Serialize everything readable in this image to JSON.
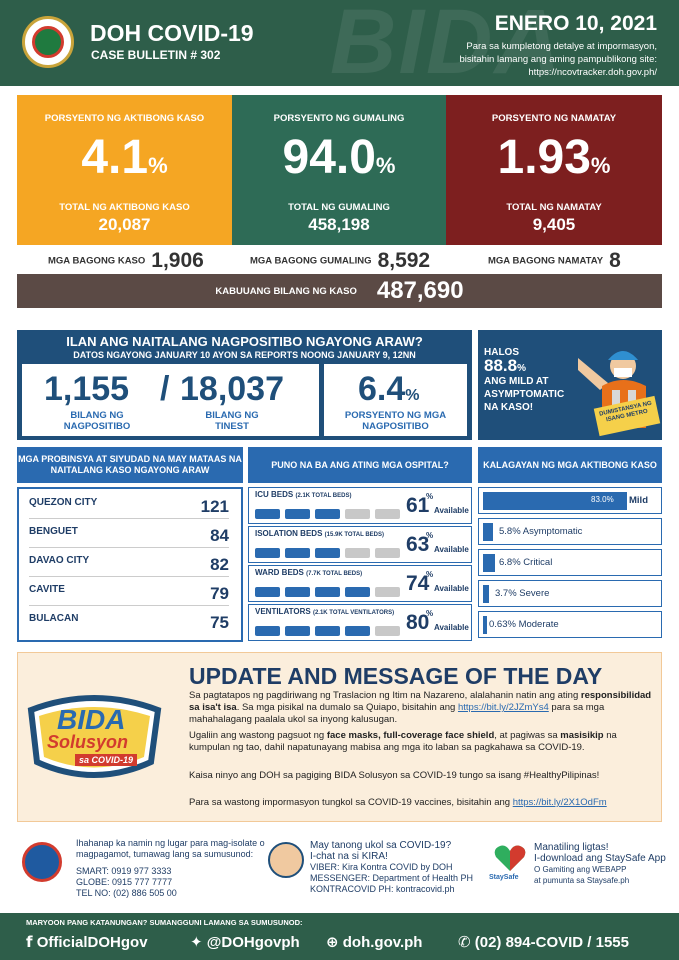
{
  "header": {
    "title": "DOH COVID-19",
    "subtitle": "CASE BULLETIN # 302",
    "date": "ENERO 10, 2021",
    "note1": "Para sa kumpletong detalye at impormasyon,",
    "note2": "bisitahin lamang ang aming pampublikong site:",
    "note3": "https://ncovtracker.doh.gov.ph/",
    "watermark": "BIDA"
  },
  "stats": [
    {
      "label": "PORSYENTO NG AKTIBONG KASO",
      "value": "4.1",
      "unit": "%",
      "total_label": "TOTAL NG AKTIBONG KASO",
      "total": "20,087",
      "color": "#f5a623"
    },
    {
      "label": "PORSYENTO NG GUMALING",
      "value": "94.0",
      "unit": "%",
      "total_label": "TOTAL NG GUMALING",
      "total": "458,198",
      "color": "#2e6b56"
    },
    {
      "label": "PORSYENTO NG NAMATAY",
      "value": "1.93",
      "unit": "%",
      "total_label": "TOTAL NG NAMATAY",
      "total": "9,405",
      "color": "#7d1f1f"
    }
  ],
  "new_cases": {
    "label": "MGA BAGONG KASO",
    "value": "1,906"
  },
  "new_recovered": {
    "label": "MGA BAGONG GUMALING",
    "value": "8,592"
  },
  "new_deaths": {
    "label": "MGA BAGONG NAMATAY",
    "value": "8"
  },
  "total_cases": {
    "label": "KABUUANG BILANG NG KASO",
    "value": "487,690"
  },
  "positives": {
    "title": "ILAN ANG NAITALANG NAGPOSITIBO NGAYONG ARAW?",
    "subtitle": "DATOS NGAYONG JANUARY 10 AYON SA REPORTS NOONG JANUARY 9, 12NN",
    "positive": "1,155",
    "slash": "/",
    "tested": "18,037",
    "positive_label": "BILANG NG NAGPOSITIBO",
    "tested_label": "BILANG NG TINEST",
    "rate": "6.4",
    "rate_unit": "%",
    "rate_label": "PORSYENTO NG MGA NAGPOSITIBO"
  },
  "mild_panel": {
    "halos": "HALOS",
    "pct": "88.8",
    "unit": "%",
    "line1": "ANG MILD AT",
    "line2": "ASYMPTOMATIC",
    "line3": "NA KASO!",
    "sign": "DUMISTANSYA NG ISANG METRO"
  },
  "cities": {
    "header": "MGA PROBINSYA AT SIYUDAD NA MAY MATAAS NA NAITALANG KASO NGAYONG ARAW",
    "rows": [
      {
        "name": "QUEZON CITY",
        "value": "121"
      },
      {
        "name": "BENGUET",
        "value": "84"
      },
      {
        "name": "DAVAO CITY",
        "value": "82"
      },
      {
        "name": "CAVITE",
        "value": "79"
      },
      {
        "name": "BULACAN",
        "value": "75"
      }
    ]
  },
  "hospitals": {
    "header": "PUNO NA BA ANG ATING MGA OSPITAL?",
    "available": "Available",
    "rows": [
      {
        "name": "ICU BEDS",
        "note": "(2.1K TOTAL BEDS)",
        "pct": "61",
        "unit": "%",
        "level": 0.61
      },
      {
        "name": "ISOLATION BEDS",
        "note": "(15.9K TOTAL BEDS)",
        "pct": "63",
        "unit": "%",
        "level": 0.63
      },
      {
        "name": "WARD BEDS",
        "note": "(7.7K TOTAL BEDS)",
        "pct": "74",
        "unit": "%",
        "level": 0.74
      },
      {
        "name": "VENTILATORS",
        "note": "(2.1K TOTAL VENTILATORS)",
        "pct": "80",
        "unit": "%",
        "level": 0.8
      }
    ]
  },
  "status": {
    "header": "KALAGAYAN NG MGA AKTIBONG KASO",
    "rows": [
      {
        "pct": "83.0%",
        "name": "Mild",
        "level": 0.83
      },
      {
        "pct": "5.8%",
        "name": "Asymptomatic",
        "level": 0.058
      },
      {
        "pct": "6.8%",
        "name": "Critical",
        "level": 0.068
      },
      {
        "pct": "3.7%",
        "name": "Severe",
        "level": 0.037
      },
      {
        "pct": "0.63%",
        "name": "Moderate",
        "level": 0.0063
      }
    ]
  },
  "update": {
    "title": "UPDATE AND MESSAGE OF THE DAY",
    "p1a": "Sa pagtatapos ng pagdiriwang ng Traslacion ng Itim na Nazareno, alalahanin natin ang ating",
    "p1b": "responsibilidad sa isa't isa",
    "p1c": ". Sa mga pisikal na dumalo sa Quiapo, bisitahin ang",
    "p1link": "https://bit.ly/2JZmYs4",
    "p1d": " para sa mga mahahalagang paalala ukol sa inyong kalusugan.",
    "p2a": "Ugaliin ang wastong pagsuot ng ",
    "p2b": "face masks, full-coverage face shield",
    ", at pagiwas sa ": "",
    "p2c": ", at pagiwas sa ",
    "p2d": "masisikip",
    "p2e": " na kumpulan ng tao, dahil napatunayang mabisa ang mga ito laban sa pagkahawa sa COVID-19.",
    "p3": "Kaisa ninyo ang DOH sa pagiging BIDA Solusyon sa COVID-19 tungo sa isang #HealthyPilipinas!",
    "p4": "Para sa wastong impormasyon tungkol sa COVID-19 vaccines, bisitahin ang",
    "p4link": "https://bit.ly/2X1OdFm",
    "bida1": "BIDA",
    "bida2": "Solusyon",
    "bida3": "sa COVID-19"
  },
  "hotline": {
    "intro1": "Ihahanap ka namin ng lugar para mag-isolate o",
    "intro2": "magpagamot, tumawag lang sa sumusunod:",
    "smart": "SMART: 0919 977 3333",
    "globe": "GLOBE: 0915 777 7777",
    "tel": "TEL NO: (02) 886 505 00"
  },
  "kira": {
    "q": "May tanong ukol sa COVID-19?",
    "chat": "I-chat na si KIRA!",
    "viber": "VIBER: Kira Kontra COVID by DOH",
    "messenger": "MESSENGER: Department of Health PH",
    "kontra": "KONTRACOVID PH: kontracovid.ph"
  },
  "staysafe": {
    "l1": "Manatiling ligtas!",
    "l2": "I-download ang StaySafe App",
    "l3": "O Gamiting ang WEBAPP",
    "l4": "at pumunta sa Staysafe.ph",
    "logo": "StaySafe"
  },
  "footer": {
    "question": "MARYOON PANG KATANUNGAN? SUMANGGUNI LAMANG SA SUMUSUNOD:",
    "fb": "OfficialDOHgov",
    "tw": "@DOHgovph",
    "web": "doh.gov.ph",
    "phone": "(02) 894-COVID  /  1555"
  }
}
